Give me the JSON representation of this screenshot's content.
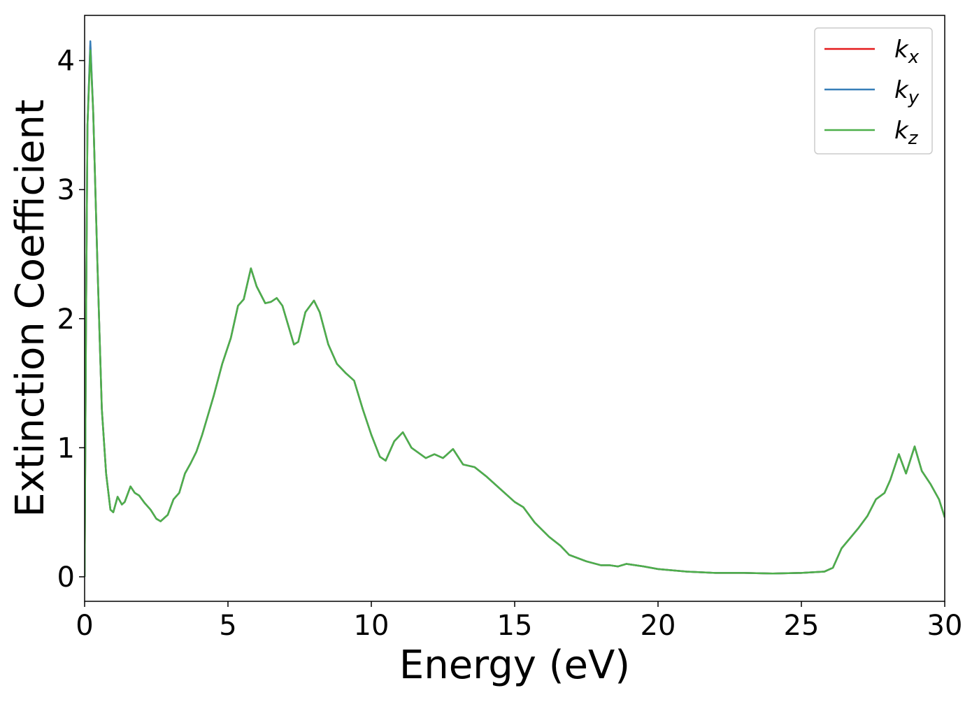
{
  "chart_data": {
    "type": "line",
    "xlabel": "Energy (eV)",
    "ylabel": "Extinction Coefficient",
    "x": [
      0,
      0.05,
      0.1,
      0.2,
      0.3,
      0.45,
      0.6,
      0.75,
      0.9,
      1.0,
      1.15,
      1.3,
      1.4,
      1.6,
      1.75,
      1.9,
      2.1,
      2.3,
      2.5,
      2.65,
      2.9,
      3.1,
      3.3,
      3.5,
      3.7,
      3.9,
      4.1,
      4.3,
      4.5,
      4.8,
      5.1,
      5.35,
      5.55,
      5.8,
      6.0,
      6.3,
      6.5,
      6.7,
      6.9,
      7.1,
      7.3,
      7.45,
      7.7,
      8.0,
      8.2,
      8.5,
      8.8,
      9.1,
      9.4,
      9.7,
      10.0,
      10.3,
      10.5,
      10.8,
      11.1,
      11.4,
      11.9,
      12.2,
      12.5,
      12.85,
      13.2,
      13.6,
      14.0,
      14.5,
      15.0,
      15.3,
      15.7,
      16.2,
      16.6,
      16.9,
      17.5,
      18.0,
      18.3,
      18.6,
      18.9,
      19.5,
      20.0,
      21.0,
      22.0,
      23.0,
      24.0,
      25.0,
      25.8,
      26.1,
      26.4,
      26.7,
      27.0,
      27.3,
      27.6,
      27.9,
      28.1,
      28.4,
      28.65,
      28.95,
      29.2,
      29.5,
      29.8,
      30.0
    ],
    "series": [
      {
        "name": "kx",
        "color": "#e41a1c",
        "values": [
          0,
          2.0,
          3.5,
          4.12,
          3.6,
          2.4,
          1.3,
          0.8,
          0.52,
          0.5,
          0.62,
          0.56,
          0.58,
          0.7,
          0.65,
          0.63,
          0.57,
          0.52,
          0.45,
          0.43,
          0.48,
          0.6,
          0.65,
          0.8,
          0.88,
          0.97,
          1.1,
          1.25,
          1.4,
          1.65,
          1.85,
          2.1,
          2.15,
          2.39,
          2.25,
          2.12,
          2.13,
          2.16,
          2.1,
          1.95,
          1.8,
          1.82,
          2.05,
          2.14,
          2.05,
          1.8,
          1.65,
          1.58,
          1.52,
          1.3,
          1.1,
          0.93,
          0.9,
          1.05,
          1.12,
          1.0,
          0.92,
          0.95,
          0.92,
          0.99,
          0.87,
          0.85,
          0.78,
          0.68,
          0.58,
          0.54,
          0.42,
          0.31,
          0.24,
          0.17,
          0.12,
          0.09,
          0.09,
          0.08,
          0.1,
          0.08,
          0.06,
          0.04,
          0.03,
          0.03,
          0.025,
          0.03,
          0.04,
          0.07,
          0.22,
          0.3,
          0.38,
          0.47,
          0.6,
          0.65,
          0.75,
          0.95,
          0.8,
          1.01,
          0.82,
          0.72,
          0.6,
          0.46
        ]
      },
      {
        "name": "ky",
        "color": "#377eb8",
        "values": [
          0,
          2.0,
          3.5,
          4.15,
          3.6,
          2.4,
          1.3,
          0.8,
          0.52,
          0.5,
          0.62,
          0.56,
          0.58,
          0.7,
          0.65,
          0.63,
          0.57,
          0.52,
          0.45,
          0.43,
          0.48,
          0.6,
          0.65,
          0.8,
          0.88,
          0.97,
          1.1,
          1.25,
          1.4,
          1.65,
          1.85,
          2.1,
          2.15,
          2.39,
          2.25,
          2.12,
          2.13,
          2.16,
          2.1,
          1.95,
          1.8,
          1.82,
          2.05,
          2.14,
          2.05,
          1.8,
          1.65,
          1.58,
          1.52,
          1.3,
          1.1,
          0.93,
          0.9,
          1.05,
          1.12,
          1.0,
          0.92,
          0.95,
          0.92,
          0.99,
          0.87,
          0.85,
          0.78,
          0.68,
          0.58,
          0.54,
          0.42,
          0.31,
          0.24,
          0.17,
          0.12,
          0.09,
          0.09,
          0.08,
          0.1,
          0.08,
          0.06,
          0.04,
          0.03,
          0.03,
          0.025,
          0.03,
          0.04,
          0.07,
          0.22,
          0.3,
          0.38,
          0.47,
          0.6,
          0.65,
          0.75,
          0.95,
          0.8,
          1.01,
          0.82,
          0.72,
          0.6,
          0.46
        ]
      },
      {
        "name": "kz",
        "color": "#4daf4a",
        "values": [
          0,
          2.0,
          3.5,
          4.08,
          3.6,
          2.4,
          1.3,
          0.8,
          0.52,
          0.5,
          0.62,
          0.56,
          0.58,
          0.7,
          0.65,
          0.63,
          0.57,
          0.52,
          0.45,
          0.43,
          0.48,
          0.6,
          0.65,
          0.8,
          0.88,
          0.97,
          1.1,
          1.25,
          1.4,
          1.65,
          1.85,
          2.1,
          2.15,
          2.39,
          2.25,
          2.12,
          2.13,
          2.16,
          2.1,
          1.95,
          1.8,
          1.82,
          2.05,
          2.14,
          2.05,
          1.8,
          1.65,
          1.58,
          1.52,
          1.3,
          1.1,
          0.93,
          0.9,
          1.05,
          1.12,
          1.0,
          0.92,
          0.95,
          0.92,
          0.99,
          0.87,
          0.85,
          0.78,
          0.68,
          0.58,
          0.54,
          0.42,
          0.31,
          0.24,
          0.17,
          0.12,
          0.09,
          0.09,
          0.08,
          0.1,
          0.08,
          0.06,
          0.04,
          0.03,
          0.03,
          0.025,
          0.03,
          0.04,
          0.07,
          0.22,
          0.3,
          0.38,
          0.47,
          0.6,
          0.65,
          0.75,
          0.95,
          0.8,
          1.01,
          0.82,
          0.72,
          0.6,
          0.46
        ]
      }
    ],
    "xlim": [
      0,
      30
    ],
    "xticks": [
      0,
      5,
      10,
      15,
      20,
      25,
      30
    ],
    "ylim": [
      -0.19,
      4.35
    ],
    "yticks": [
      0,
      1,
      2,
      3,
      4
    ],
    "grid": false,
    "legend": "upper right"
  }
}
